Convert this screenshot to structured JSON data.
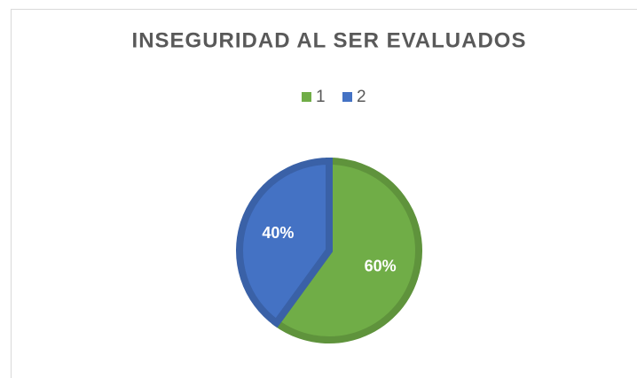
{
  "chart_data": {
    "type": "pie",
    "title": "INSEGURIDAD AL SER EVALUADOS",
    "categories": [
      "1",
      "2"
    ],
    "values": [
      60,
      40
    ],
    "value_labels": [
      "60%",
      "40%"
    ],
    "colors": [
      "#70ad47",
      "#4472c4"
    ],
    "legend": "top"
  }
}
